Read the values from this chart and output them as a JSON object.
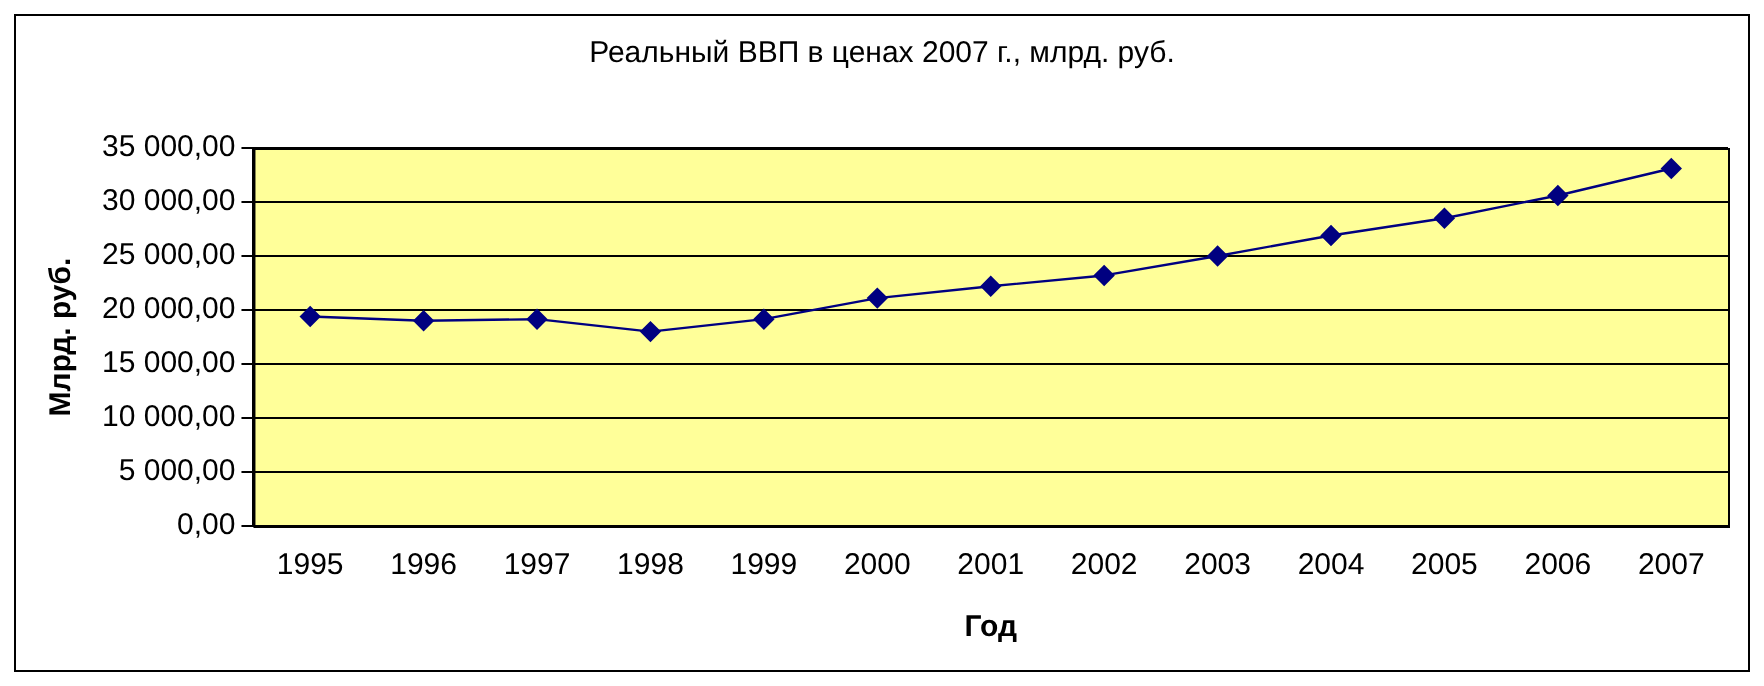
{
  "chart_data": {
    "type": "line",
    "title": "Реальный ВВП в ценах 2007 г., млрд. руб.",
    "xlabel": "Год",
    "ylabel": "Млрд. руб.",
    "categories": [
      "1995",
      "1996",
      "1997",
      "1998",
      "1999",
      "2000",
      "2001",
      "2002",
      "2003",
      "2004",
      "2005",
      "2006",
      "2007"
    ],
    "series": [
      {
        "color": "#000080",
        "values": [
          19400,
          19000,
          19150,
          18000,
          19150,
          21100,
          22200,
          23200,
          25000,
          26900,
          28500,
          30600,
          33100
        ]
      }
    ],
    "ylim": [
      0,
      35000
    ],
    "yticks": [
      {
        "value": 0,
        "label": "0,00"
      },
      {
        "value": 5000,
        "label": "5 000,00"
      },
      {
        "value": 10000,
        "label": "10 000,00"
      },
      {
        "value": 15000,
        "label": "15 000,00"
      },
      {
        "value": 20000,
        "label": "20 000,00"
      },
      {
        "value": 25000,
        "label": "25 000,00"
      },
      {
        "value": 30000,
        "label": "30 000,00"
      },
      {
        "value": 35000,
        "label": "35 000,00"
      }
    ],
    "grid": "y",
    "legend": false,
    "marker": "diamond",
    "line_style": "solid"
  }
}
